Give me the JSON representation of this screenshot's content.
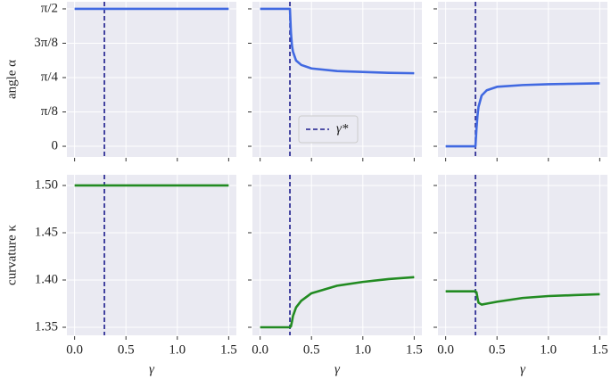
{
  "chart_data": [
    {
      "type": "line",
      "ylabel": "angle α",
      "x": [
        0,
        0.1,
        0.2,
        0.28,
        0.29,
        0.3,
        0.31,
        0.32,
        0.35,
        0.4,
        0.5,
        0.75,
        1.0,
        1.25,
        1.5
      ],
      "series": [
        {
          "color": "#4169e1",
          "values": [
            1.5708,
            1.5708,
            1.5708,
            1.5708,
            1.5708,
            1.5708,
            1.5708,
            1.5708,
            1.5708,
            1.5708,
            1.5708,
            1.5708,
            1.5708,
            1.5708,
            1.5708
          ]
        }
      ],
      "vline": {
        "x": 0.29,
        "color": "#1c1c8c"
      },
      "xlim": [
        -0.075,
        1.575
      ],
      "xticks": [
        0,
        0.5,
        1,
        1.5
      ],
      "show_xticklabels": false,
      "ylim": [
        -0.122,
        1.652
      ],
      "yticks": [
        {
          "value": 0,
          "label": "0"
        },
        {
          "value": 0.3927,
          "label": "π/8"
        },
        {
          "value": 0.7854,
          "label": "π/4"
        },
        {
          "value": 1.1781,
          "label": "3π/8"
        },
        {
          "value": 1.5708,
          "label": "π/2"
        }
      ],
      "show_yticklabels": true,
      "grid": true
    },
    {
      "type": "line",
      "x": [
        0,
        0.1,
        0.2,
        0.28,
        0.29,
        0.3,
        0.31,
        0.32,
        0.35,
        0.4,
        0.5,
        0.75,
        1.0,
        1.25,
        1.5
      ],
      "series": [
        {
          "color": "#4169e1",
          "values": [
            1.5708,
            1.5708,
            1.5708,
            1.5708,
            1.5708,
            1.3,
            1.15,
            1.08,
            0.98,
            0.93,
            0.89,
            0.86,
            0.85,
            0.84,
            0.835
          ]
        }
      ],
      "vline": {
        "x": 0.29,
        "color": "#1c1c8c",
        "name": "γ*"
      },
      "legend": "lower center",
      "xlim": [
        -0.075,
        1.575
      ],
      "xticks": [
        0,
        0.5,
        1,
        1.5
      ],
      "show_xticklabels": false,
      "ylim": [
        -0.122,
        1.652
      ],
      "yticks": [
        0,
        0.3927,
        0.7854,
        1.1781,
        1.5708
      ],
      "show_yticklabels": false,
      "grid": true
    },
    {
      "type": "line",
      "x": [
        0,
        0.1,
        0.2,
        0.28,
        0.29,
        0.3,
        0.31,
        0.32,
        0.35,
        0.4,
        0.5,
        0.75,
        1.0,
        1.25,
        1.5
      ],
      "series": [
        {
          "color": "#4169e1",
          "values": [
            0,
            0,
            0,
            0,
            0,
            0.2,
            0.35,
            0.45,
            0.58,
            0.64,
            0.68,
            0.7,
            0.71,
            0.715,
            0.72
          ]
        }
      ],
      "vline": {
        "x": 0.29,
        "color": "#1c1c8c"
      },
      "xlim": [
        -0.075,
        1.575
      ],
      "xticks": [
        0,
        0.5,
        1,
        1.5
      ],
      "show_xticklabels": false,
      "ylim": [
        -0.122,
        1.652
      ],
      "yticks": [
        0,
        0.3927,
        0.7854,
        1.1781,
        1.5708
      ],
      "show_yticklabels": false,
      "grid": true
    },
    {
      "type": "line",
      "ylabel": "curvature κ",
      "xlabel": "γ",
      "x": [
        0,
        0.1,
        0.2,
        0.28,
        0.29,
        0.3,
        0.31,
        0.32,
        0.35,
        0.4,
        0.5,
        0.75,
        1.0,
        1.25,
        1.5
      ],
      "series": [
        {
          "color": "#228b22",
          "values": [
            1.5,
            1.5,
            1.5,
            1.5,
            1.5,
            1.5,
            1.5,
            1.5,
            1.5,
            1.5,
            1.5,
            1.5,
            1.5,
            1.5,
            1.5
          ]
        }
      ],
      "vline": {
        "x": 0.29,
        "color": "#1c1c8c"
      },
      "xlim": [
        -0.075,
        1.575
      ],
      "xticks": [
        {
          "value": 0,
          "label": "0.0"
        },
        0.5,
        {
          "value": 1,
          "label": "1.0"
        },
        1.5
      ],
      "show_xticklabels": true,
      "ylim": [
        1.3415,
        1.5113
      ],
      "yticks": [
        1.35,
        {
          "value": 1.4,
          "label": "1.40"
        },
        1.45,
        {
          "value": 1.5,
          "label": "1.50"
        }
      ],
      "show_yticklabels": true,
      "grid": true
    },
    {
      "type": "line",
      "xlabel": "γ",
      "x": [
        0,
        0.1,
        0.2,
        0.28,
        0.29,
        0.3,
        0.31,
        0.32,
        0.35,
        0.4,
        0.5,
        0.75,
        1.0,
        1.25,
        1.5
      ],
      "series": [
        {
          "color": "#228b22",
          "values": [
            1.35,
            1.35,
            1.35,
            1.35,
            1.35,
            1.351,
            1.356,
            1.362,
            1.371,
            1.378,
            1.386,
            1.394,
            1.398,
            1.401,
            1.403
          ]
        }
      ],
      "vline": {
        "x": 0.29,
        "color": "#1c1c8c"
      },
      "xlim": [
        -0.075,
        1.575
      ],
      "xticks": [
        {
          "value": 0,
          "label": "0.0"
        },
        0.5,
        {
          "value": 1,
          "label": "1.0"
        },
        1.5
      ],
      "show_xticklabels": true,
      "ylim": [
        1.3415,
        1.5113
      ],
      "yticks": [
        1.35,
        1.4,
        1.45,
        1.5
      ],
      "show_yticklabels": false,
      "grid": true
    },
    {
      "type": "line",
      "xlabel": "γ",
      "x": [
        0,
        0.1,
        0.2,
        0.28,
        0.29,
        0.3,
        0.31,
        0.32,
        0.35,
        0.4,
        0.5,
        0.75,
        1.0,
        1.25,
        1.5
      ],
      "series": [
        {
          "color": "#228b22",
          "values": [
            1.388,
            1.388,
            1.388,
            1.388,
            1.388,
            1.387,
            1.381,
            1.376,
            1.374,
            1.375,
            1.377,
            1.381,
            1.383,
            1.384,
            1.385
          ]
        }
      ],
      "vline": {
        "x": 0.29,
        "color": "#1c1c8c"
      },
      "xlim": [
        -0.075,
        1.575
      ],
      "xticks": [
        {
          "value": 0,
          "label": "0.0"
        },
        0.5,
        {
          "value": 1,
          "label": "1.0"
        },
        1.5
      ],
      "show_xticklabels": true,
      "ylim": [
        1.3415,
        1.5113
      ],
      "yticks": [
        1.35,
        1.4,
        1.45,
        1.5
      ],
      "show_yticklabels": false,
      "grid": true
    }
  ]
}
